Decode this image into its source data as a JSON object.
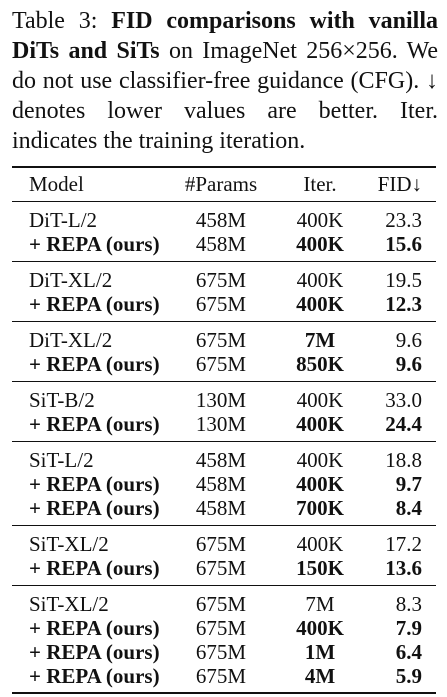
{
  "caption": {
    "prefix": "Table 3: ",
    "title": "FID comparisons with vanilla DiTs and SiTs",
    "rest": " on ImageNet 256×256. We do not use classifier-free guidance (CFG). ↓ denotes lower values are better. Iter. indicates the training iteration."
  },
  "table": {
    "headers": [
      "Model",
      "#Params",
      "Iter.",
      "FID↓"
    ],
    "groups": [
      {
        "rows": [
          {
            "model": "DiT-L/2",
            "params": "458M",
            "iter": "400K",
            "fid": "23.3",
            "model_bold": false,
            "iter_bold": false,
            "fid_bold": false
          },
          {
            "model": "+ REPA (ours)",
            "params": "458M",
            "iter": "400K",
            "fid": "15.6",
            "model_bold": true,
            "iter_bold": true,
            "fid_bold": true
          }
        ]
      },
      {
        "rows": [
          {
            "model": "DiT-XL/2",
            "params": "675M",
            "iter": "400K",
            "fid": "19.5",
            "model_bold": false,
            "iter_bold": false,
            "fid_bold": false
          },
          {
            "model": "+ REPA (ours)",
            "params": "675M",
            "iter": "400K",
            "fid": "12.3",
            "model_bold": true,
            "iter_bold": true,
            "fid_bold": true
          }
        ]
      },
      {
        "rows": [
          {
            "model": "DiT-XL/2",
            "params": "675M",
            "iter": "7M",
            "fid": "9.6",
            "model_bold": false,
            "iter_bold": true,
            "fid_bold": false
          },
          {
            "model": "+ REPA (ours)",
            "params": "675M",
            "iter": "850K",
            "fid": "9.6",
            "model_bold": true,
            "iter_bold": true,
            "fid_bold": true
          }
        ]
      },
      {
        "rows": [
          {
            "model": "SiT-B/2",
            "params": "130M",
            "iter": "400K",
            "fid": "33.0",
            "model_bold": false,
            "iter_bold": false,
            "fid_bold": false
          },
          {
            "model": "+ REPA (ours)",
            "params": "130M",
            "iter": "400K",
            "fid": "24.4",
            "model_bold": true,
            "iter_bold": true,
            "fid_bold": true
          }
        ]
      },
      {
        "rows": [
          {
            "model": "SiT-L/2",
            "params": "458M",
            "iter": "400K",
            "fid": "18.8",
            "model_bold": false,
            "iter_bold": false,
            "fid_bold": false
          },
          {
            "model": "+ REPA (ours)",
            "params": "458M",
            "iter": "400K",
            "fid": "9.7",
            "model_bold": true,
            "iter_bold": true,
            "fid_bold": true
          },
          {
            "model": "+ REPA (ours)",
            "params": "458M",
            "iter": "700K",
            "fid": "8.4",
            "model_bold": true,
            "iter_bold": true,
            "fid_bold": true
          }
        ]
      },
      {
        "rows": [
          {
            "model": "SiT-XL/2",
            "params": "675M",
            "iter": "400K",
            "fid": "17.2",
            "model_bold": false,
            "iter_bold": false,
            "fid_bold": false
          },
          {
            "model": "+ REPA (ours)",
            "params": "675M",
            "iter": "150K",
            "fid": "13.6",
            "model_bold": true,
            "iter_bold": true,
            "fid_bold": true
          }
        ]
      },
      {
        "rows": [
          {
            "model": "SiT-XL/2",
            "params": "675M",
            "iter": "7M",
            "fid": "8.3",
            "model_bold": false,
            "iter_bold": false,
            "fid_bold": false
          },
          {
            "model": "+ REPA (ours)",
            "params": "675M",
            "iter": "400K",
            "fid": "7.9",
            "model_bold": true,
            "iter_bold": true,
            "fid_bold": true
          },
          {
            "model": "+ REPA (ours)",
            "params": "675M",
            "iter": "1M",
            "fid": "6.4",
            "model_bold": true,
            "iter_bold": true,
            "fid_bold": true
          },
          {
            "model": "+ REPA (ours)",
            "params": "675M",
            "iter": "4M",
            "fid": "5.9",
            "model_bold": true,
            "iter_bold": true,
            "fid_bold": true
          }
        ]
      }
    ]
  }
}
